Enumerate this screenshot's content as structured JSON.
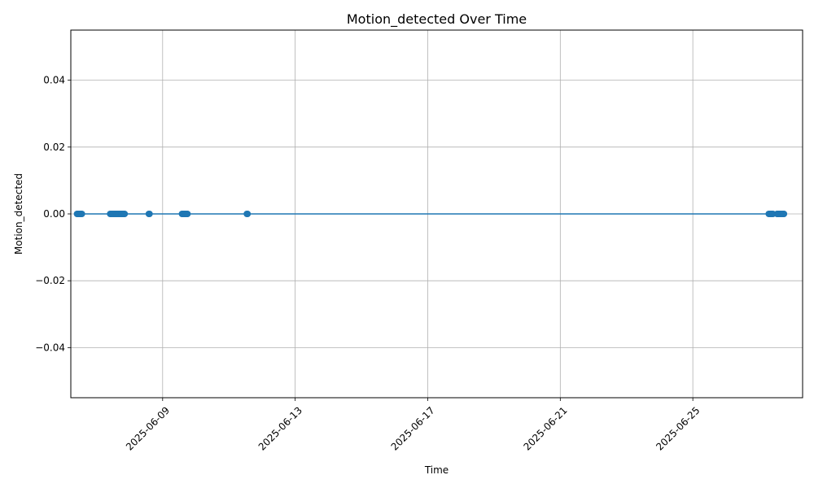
{
  "chart_data": {
    "type": "line",
    "title": "Motion_detected Over Time",
    "xlabel": "Time",
    "ylabel": "Motion_detected",
    "x_scale": "date",
    "xlim": [
      "2025-06-06T05:30",
      "2025-06-28T07:30"
    ],
    "ylim": [
      -0.055,
      0.055
    ],
    "x_ticks": [
      "2025-06-09",
      "2025-06-13",
      "2025-06-17",
      "2025-06-21",
      "2025-06-25"
    ],
    "y_ticks": [
      -0.04,
      -0.02,
      0.0,
      0.02,
      0.04
    ],
    "y_tick_labels": [
      "−0.04",
      "−0.02",
      "0.00",
      "0.02",
      "0.04"
    ],
    "grid": true,
    "marker": "circle",
    "color": "#1f77b4",
    "series": [
      {
        "name": "",
        "x": [
          "2025-06-06T10:00",
          "2025-06-06T10:30",
          "2025-06-06T11:00",
          "2025-06-06T11:30",
          "2025-06-06T12:00",
          "2025-06-06T12:30",
          "2025-06-06T13:00",
          "2025-06-06T13:30",
          "2025-06-07T10:00",
          "2025-06-07T10:30",
          "2025-06-07T11:00",
          "2025-06-07T11:30",
          "2025-06-07T12:00",
          "2025-06-07T12:30",
          "2025-06-07T13:00",
          "2025-06-07T13:30",
          "2025-06-07T14:00",
          "2025-06-07T14:30",
          "2025-06-07T15:00",
          "2025-06-07T15:30",
          "2025-06-07T16:00",
          "2025-06-07T16:30",
          "2025-06-07T17:00",
          "2025-06-07T17:30",
          "2025-06-07T18:00",
          "2025-06-07T18:30",
          "2025-06-07T19:00",
          "2025-06-07T19:30",
          "2025-06-07T20:00",
          "2025-06-07T20:30",
          "2025-06-08T14:00",
          "2025-06-08T14:30",
          "2025-06-09T14:00",
          "2025-06-09T14:30",
          "2025-06-09T15:00",
          "2025-06-09T15:30",
          "2025-06-09T16:00",
          "2025-06-09T16:30",
          "2025-06-09T17:00",
          "2025-06-09T17:30",
          "2025-06-09T18:00",
          "2025-06-11T13:00",
          "2025-06-11T13:30",
          "2025-06-27T07:00",
          "2025-06-27T07:30",
          "2025-06-27T08:00",
          "2025-06-27T08:30",
          "2025-06-27T09:00",
          "2025-06-27T09:30",
          "2025-06-27T10:00",
          "2025-06-27T13:00",
          "2025-06-27T13:30",
          "2025-06-27T14:00",
          "2025-06-27T14:30",
          "2025-06-27T15:00",
          "2025-06-27T15:30",
          "2025-06-27T16:00",
          "2025-06-27T16:30",
          "2025-06-27T17:00",
          "2025-06-27T17:30",
          "2025-06-27T18:00"
        ],
        "y": [
          0,
          0,
          0,
          0,
          0,
          0,
          0,
          0,
          0,
          0,
          0,
          0,
          0,
          0,
          0,
          0,
          0,
          0,
          0,
          0,
          0,
          0,
          0,
          0,
          0,
          0,
          0,
          0,
          0,
          0,
          0,
          0,
          0,
          0,
          0,
          0,
          0,
          0,
          0,
          0,
          0,
          0,
          0,
          0,
          0,
          0,
          0,
          0,
          0,
          0,
          0,
          0,
          0,
          0,
          0,
          0,
          0,
          0,
          0,
          0,
          0
        ]
      }
    ]
  }
}
